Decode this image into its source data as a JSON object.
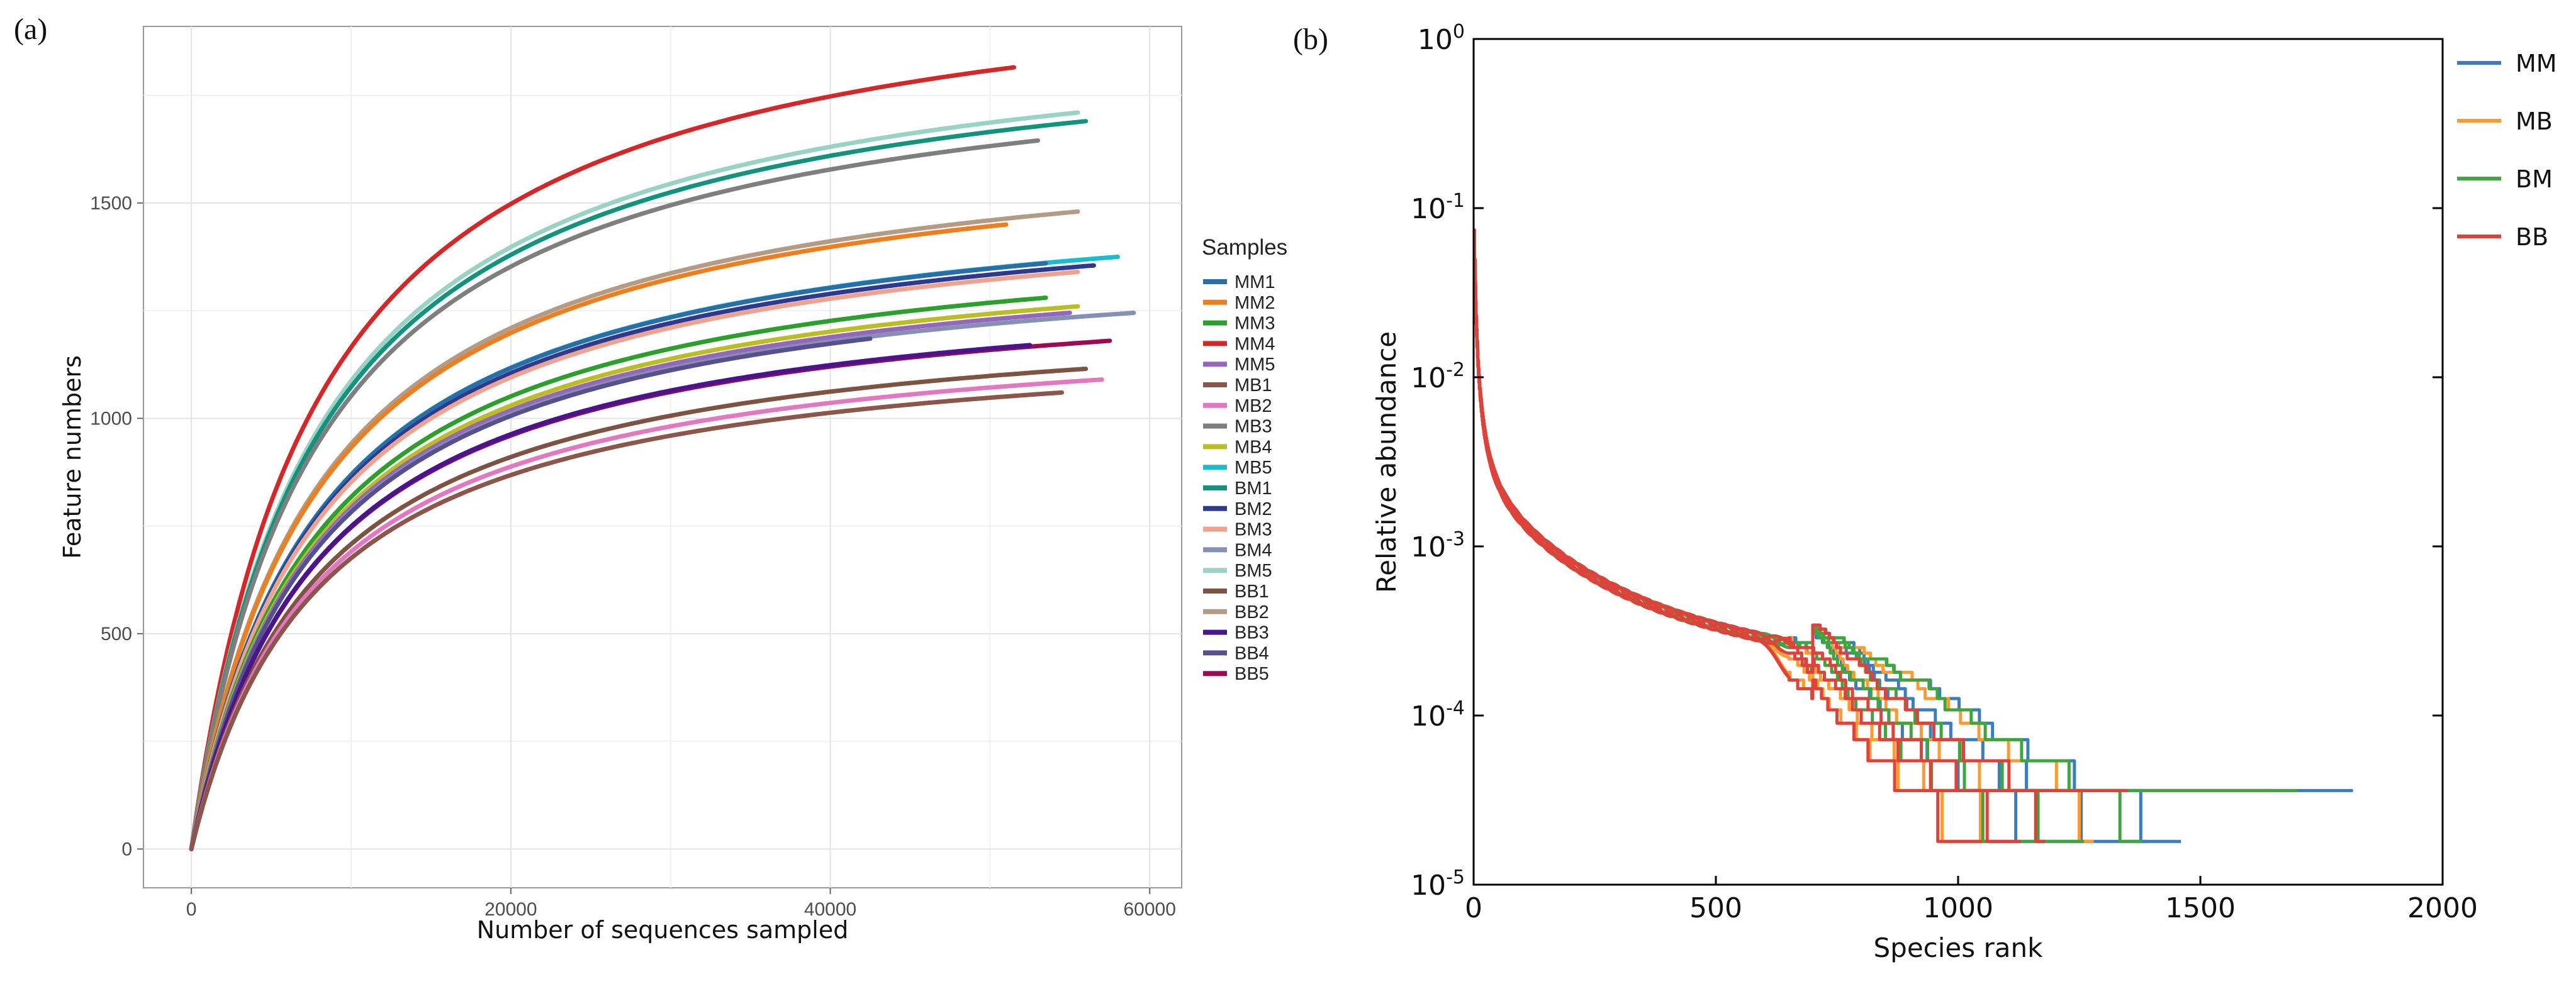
{
  "panel_labels": {
    "a": "(a)",
    "b": "(b)"
  },
  "chart_data": [
    {
      "type": "line",
      "title": "",
      "xlabel": "Number of sequences sampled",
      "ylabel": "Feature numbers",
      "xlim": [
        -3000,
        62000
      ],
      "ylim": [
        -90,
        1910
      ],
      "xticks": [
        0,
        20000,
        40000,
        60000
      ],
      "xtick_labels": [
        "0",
        "20000",
        "40000",
        "60000"
      ],
      "yticks": [
        0,
        500,
        1000,
        1500
      ],
      "ytick_labels": [
        "0",
        "500",
        "1000",
        "1500"
      ],
      "grid": true,
      "legend_title": "Samples",
      "legend_position": "right",
      "series": [
        {
          "name": "MM1",
          "color": "#2a6ea8",
          "max_x": 53500,
          "final_y": 1360
        },
        {
          "name": "MM2",
          "color": "#ee7f1e",
          "max_x": 51000,
          "final_y": 1450
        },
        {
          "name": "MM3",
          "color": "#2ca02c",
          "max_x": 53500,
          "final_y": 1280
        },
        {
          "name": "MM4",
          "color": "#d62728",
          "max_x": 51500,
          "final_y": 1815
        },
        {
          "name": "MM5",
          "color": "#9467bd",
          "max_x": 55000,
          "final_y": 1245
        },
        {
          "name": "MB1",
          "color": "#8c564b",
          "max_x": 54500,
          "final_y": 1060
        },
        {
          "name": "MB2",
          "color": "#e377c2",
          "max_x": 57000,
          "final_y": 1090
        },
        {
          "name": "MB3",
          "color": "#7f7f7f",
          "max_x": 53000,
          "final_y": 1645
        },
        {
          "name": "MB4",
          "color": "#bcbd22",
          "max_x": 55500,
          "final_y": 1260
        },
        {
          "name": "MB5",
          "color": "#17becf",
          "max_x": 58000,
          "final_y": 1375
        },
        {
          "name": "BM1",
          "color": "#12937e",
          "max_x": 56000,
          "final_y": 1690
        },
        {
          "name": "BM2",
          "color": "#2d3a8f",
          "max_x": 56500,
          "final_y": 1355
        },
        {
          "name": "BM3",
          "color": "#f0a28e",
          "max_x": 55500,
          "final_y": 1340
        },
        {
          "name": "BM4",
          "color": "#8590b5",
          "max_x": 59000,
          "final_y": 1245
        },
        {
          "name": "BM5",
          "color": "#99d3c4",
          "max_x": 55500,
          "final_y": 1710
        },
        {
          "name": "BB1",
          "color": "#7f5342",
          "max_x": 56000,
          "final_y": 1115
        },
        {
          "name": "BB2",
          "color": "#b39b85",
          "max_x": 55500,
          "final_y": 1480
        },
        {
          "name": "BB3",
          "color": "#4a148c",
          "max_x": 52500,
          "final_y": 1170
        },
        {
          "name": "BB4",
          "color": "#58508d",
          "max_x": 42500,
          "final_y": 1185
        },
        {
          "name": "BB5",
          "color": "#9e0b52",
          "max_x": 57500,
          "final_y": 1180
        }
      ]
    },
    {
      "type": "line",
      "title": "",
      "xlabel": "Species rank",
      "ylabel": "Relative abundance",
      "yscale": "log",
      "xlim": [
        0,
        2000
      ],
      "ylim": [
        1e-05,
        1
      ],
      "xticks": [
        0,
        500,
        1000,
        1500,
        2000
      ],
      "xtick_labels": [
        "0",
        "500",
        "1000",
        "1500",
        "2000"
      ],
      "ytick_base": "10",
      "ytick_exponents": [
        "-5",
        "-4",
        "-3",
        "-2",
        "-1",
        "0"
      ],
      "grid": false,
      "legend_position": "outside-right-top",
      "groups": [
        {
          "name": "MM",
          "color": "#3a7ebf",
          "max_ranks": [
            1270,
            1390,
            1460,
            1815
          ]
        },
        {
          "name": "MB",
          "color": "#ff9a2e",
          "max_ranks": [
            1060,
            1110,
            1280,
            1650
          ]
        },
        {
          "name": "BM",
          "color": "#3fa63f",
          "max_ranks": [
            1180,
            1260,
            1380,
            1700
          ]
        },
        {
          "name": "BB",
          "color": "#e0413a",
          "max_ranks": [
            1050,
            1130,
            1180,
            1350
          ]
        }
      ]
    }
  ]
}
